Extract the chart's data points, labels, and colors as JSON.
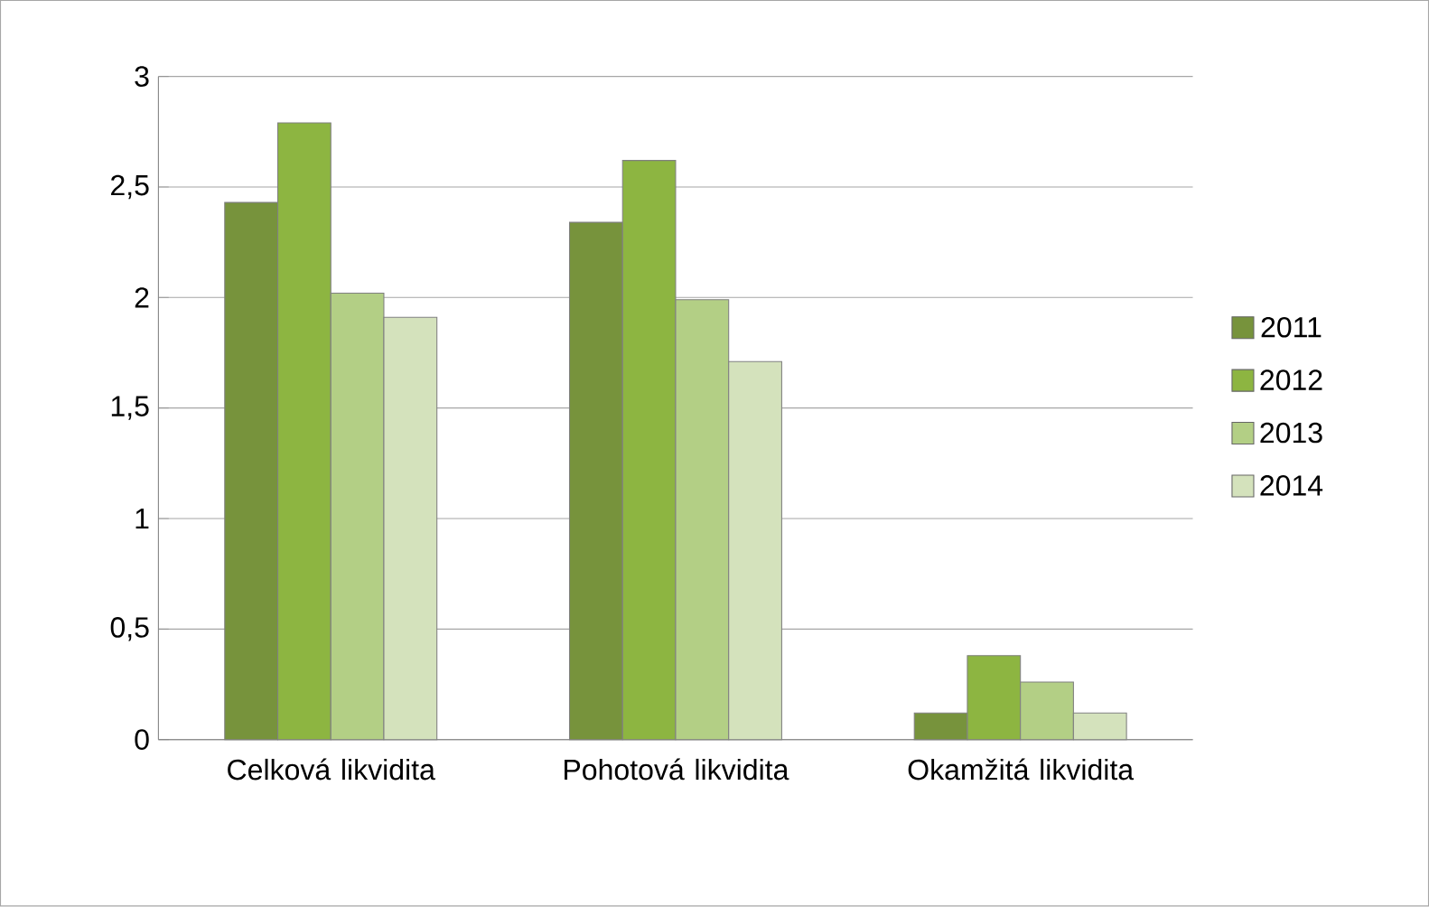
{
  "chart_data": {
    "type": "bar",
    "categories": [
      "Celková likvidita",
      "Pohotová likvidita",
      "Okamžitá likvidita"
    ],
    "series": [
      {
        "name": "2011",
        "color": "#77933c",
        "values": [
          2.43,
          2.34,
          0.12
        ]
      },
      {
        "name": "2012",
        "color": "#8db541",
        "values": [
          2.79,
          2.62,
          0.38
        ]
      },
      {
        "name": "2013",
        "color": "#b3cf85",
        "values": [
          2.02,
          1.99,
          0.26
        ]
      },
      {
        "name": "2014",
        "color": "#d4e2bc",
        "values": [
          1.91,
          1.71,
          0.12
        ]
      }
    ],
    "ylim": [
      0,
      3
    ],
    "yticks": [
      0,
      {
        "value": 0.5,
        "label": "0,5"
      },
      1,
      {
        "value": 1.5,
        "label": "1,5"
      },
      2,
      {
        "value": 2.5,
        "label": "2,5"
      },
      3
    ],
    "grid": "y",
    "legend": "right"
  }
}
